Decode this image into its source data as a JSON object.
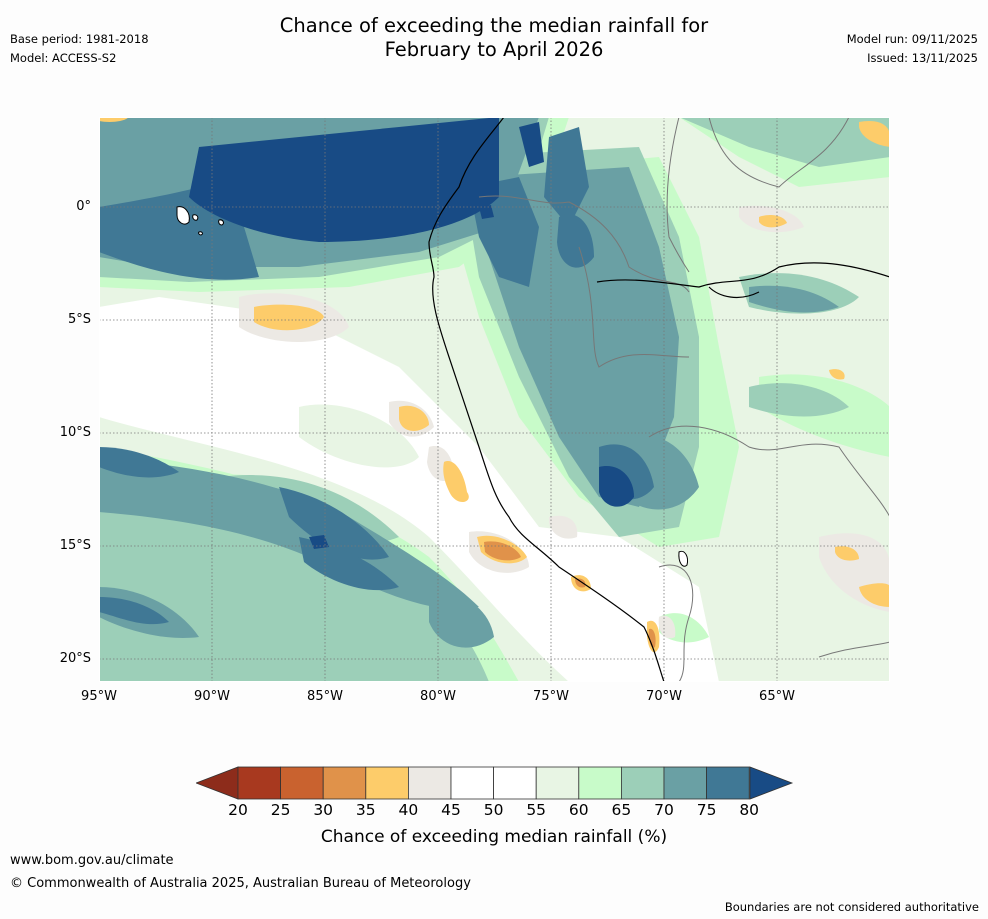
{
  "header": {
    "title_line1": "Chance of exceeding the median rainfall for",
    "title_line2": "February to April 2026",
    "base_period": "Base period: 1981-2018",
    "model": "Model: ACCESS-S2",
    "model_run": "Model run: 09/11/2025",
    "issued": "Issued: 13/11/2025"
  },
  "axes": {
    "lat_labels": [
      "0°",
      "5°S",
      "10°S",
      "15°S",
      "20°S"
    ],
    "lon_labels": [
      "95°W",
      "90°W",
      "85°W",
      "80°W",
      "75°W",
      "70°W",
      "65°W"
    ]
  },
  "legend": {
    "title": "Chance of exceeding median rainfall (%)",
    "ticks": [
      "20",
      "25",
      "30",
      "35",
      "40",
      "45",
      "50",
      "55",
      "60",
      "65",
      "70",
      "75",
      "80"
    ],
    "colors": [
      "#a8391f",
      "#c9622f",
      "#e0924a",
      "#fdcc6a",
      "#ece9e4",
      "#ffffff",
      "#ffffff",
      "#e8f5e4",
      "#c8fbc9",
      "#9ccfb8",
      "#6aa0a4",
      "#407895",
      "#184b85"
    ],
    "low_arrow_color": "#8d2c1b",
    "high_arrow_color": "#184b85"
  },
  "footer": {
    "url": "www.bom.gov.au/climate",
    "copyright": "© Commonwealth of Australia 2025, Australian Bureau of Meteorology",
    "disclaimer": "Boundaries are not considered authoritative"
  }
}
